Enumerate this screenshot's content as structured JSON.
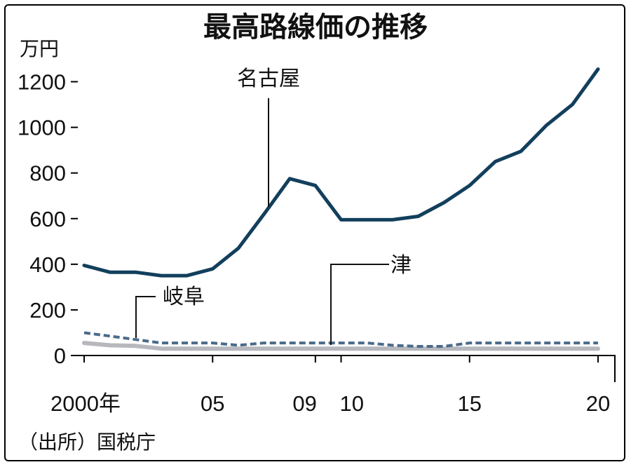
{
  "chart_data": {
    "type": "line",
    "title": "最高路線価の推移",
    "ylabel": "万円",
    "source": "（出所）国税庁",
    "ylim": [
      0,
      1300
    ],
    "yticks": [
      0,
      200,
      400,
      600,
      800,
      1000,
      1200
    ],
    "xlim": [
      2000,
      2020
    ],
    "xticks": [
      {
        "x": 2000,
        "label": "2000年"
      },
      {
        "x": 2005,
        "label": "05"
      },
      {
        "x": 2009,
        "label": "09"
      },
      {
        "x": 2010,
        "label": "10"
      },
      {
        "x": 2015,
        "label": "15"
      },
      {
        "x": 2020,
        "label": "20"
      }
    ],
    "x": [
      2000,
      2001,
      2002,
      2003,
      2004,
      2005,
      2006,
      2007,
      2008,
      2009,
      2010,
      2011,
      2012,
      2013,
      2014,
      2015,
      2016,
      2017,
      2018,
      2019,
      2020
    ],
    "series": [
      {
        "name": "名古屋",
        "color": "#123f5c",
        "style": "solid",
        "values": [
          395,
          365,
          365,
          350,
          350,
          380,
          470,
          620,
          775,
          745,
          595,
          595,
          595,
          610,
          670,
          745,
          850,
          895,
          1010,
          1100,
          1255
        ]
      },
      {
        "name": "津",
        "color": "#4a6a8a",
        "style": "dashed",
        "values": [
          100,
          85,
          70,
          55,
          55,
          55,
          45,
          55,
          55,
          55,
          55,
          55,
          45,
          40,
          40,
          55,
          55,
          55,
          55,
          55,
          55
        ]
      },
      {
        "name": "岐阜",
        "color": "#b6b8bd",
        "style": "solid",
        "values": [
          55,
          45,
          42,
          30,
          30,
          30,
          30,
          30,
          30,
          30,
          30,
          30,
          30,
          30,
          30,
          30,
          30,
          30,
          30,
          30,
          30
        ]
      }
    ]
  }
}
